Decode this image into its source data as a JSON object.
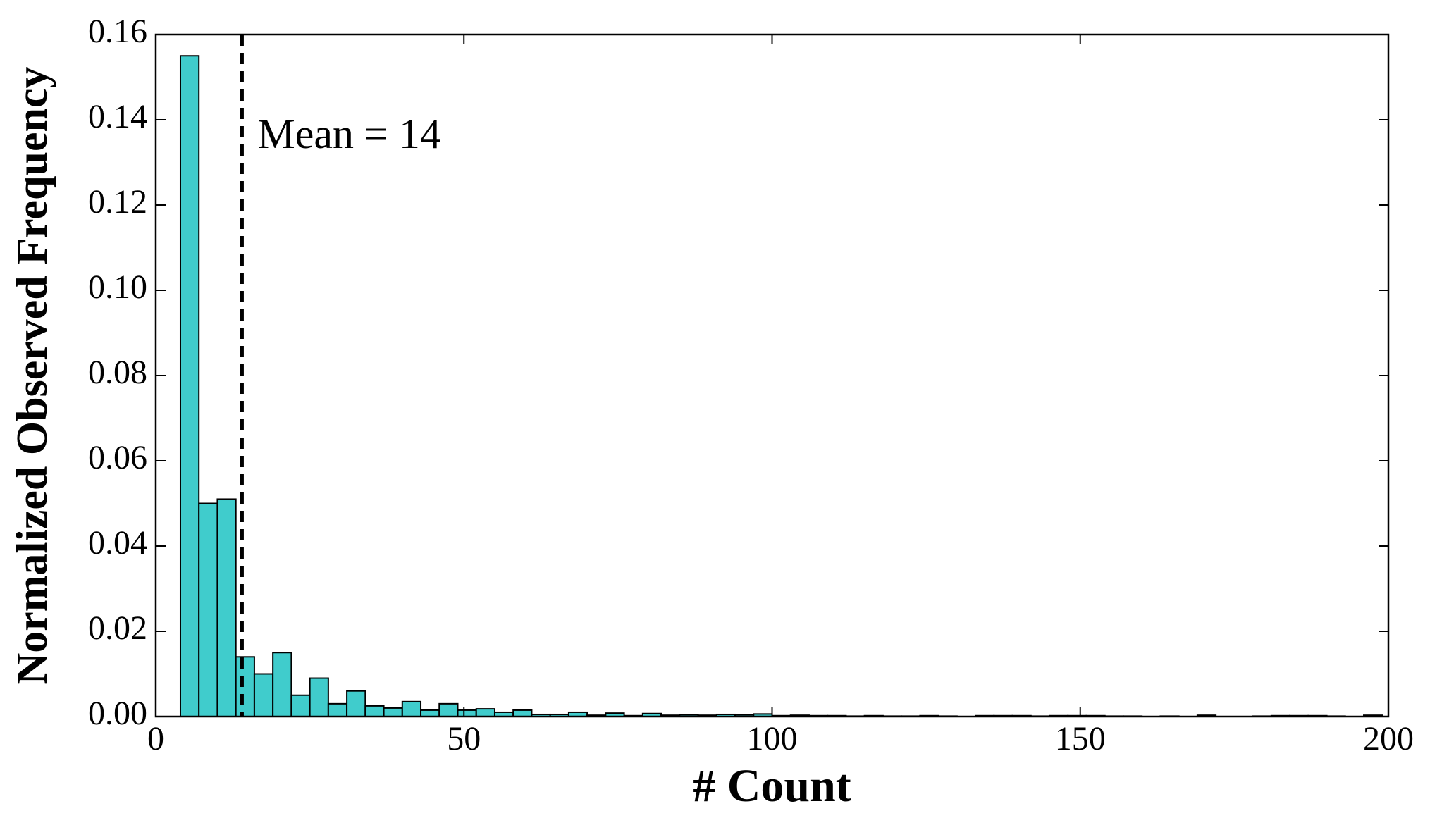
{
  "chart_data": {
    "type": "histogram",
    "xlabel": "# Count",
    "ylabel": "Normalized Observed Frequency",
    "bins": [
      4,
      7,
      10,
      13,
      16,
      19,
      22,
      25,
      28,
      31,
      34,
      37,
      40,
      43,
      46,
      49,
      52,
      55,
      58,
      61,
      64,
      67,
      70,
      73,
      76,
      79,
      82,
      85,
      88,
      91,
      94,
      97,
      100,
      103,
      106,
      109,
      112,
      115,
      118,
      121,
      124,
      127,
      130,
      133,
      136,
      139,
      142,
      145,
      148,
      151,
      154,
      157,
      160,
      163,
      166,
      169,
      172,
      175,
      178,
      181,
      184,
      187,
      190,
      193,
      196,
      199
    ],
    "values": [
      0.155,
      0.05,
      0.051,
      0.014,
      0.01,
      0.015,
      0.005,
      0.009,
      0.003,
      0.006,
      0.0025,
      0.002,
      0.0035,
      0.0015,
      0.003,
      0.0015,
      0.0018,
      0.001,
      0.0015,
      0.0005,
      0.0005,
      0.001,
      0.0003,
      0.0008,
      0.0002,
      0.0007,
      0.0003,
      0.0004,
      0.0003,
      0.0005,
      0.0004,
      0.0006,
      0.0002,
      0.0003,
      0.0002,
      0.0002,
      0.0001,
      0.0002,
      0.0001,
      0.0001,
      0.0002,
      0.0001,
      0,
      0.0002,
      0.0002,
      0.0002,
      0.0001,
      0.0002,
      0.0002,
      0.0002,
      0.0001,
      0.0001,
      0,
      0.0001,
      0,
      0.0003,
      0,
      0,
      0.0001,
      0.0002,
      0.0002,
      0.0002,
      0.0001,
      0,
      0.0003
    ],
    "color": "#40cccc",
    "mean": 14,
    "annotation": "Mean = 14",
    "xlim": [
      0,
      200
    ],
    "xticks": [
      0,
      50,
      100,
      150,
      200
    ],
    "ylim": [
      0,
      0.16
    ],
    "yticks": [
      {
        "value": 0,
        "label": "0.00"
      },
      0.02,
      0.04,
      0.06,
      0.08,
      {
        "value": 0.1,
        "label": "0.10"
      },
      0.12,
      0.14,
      0.16
    ],
    "grid": false
  }
}
